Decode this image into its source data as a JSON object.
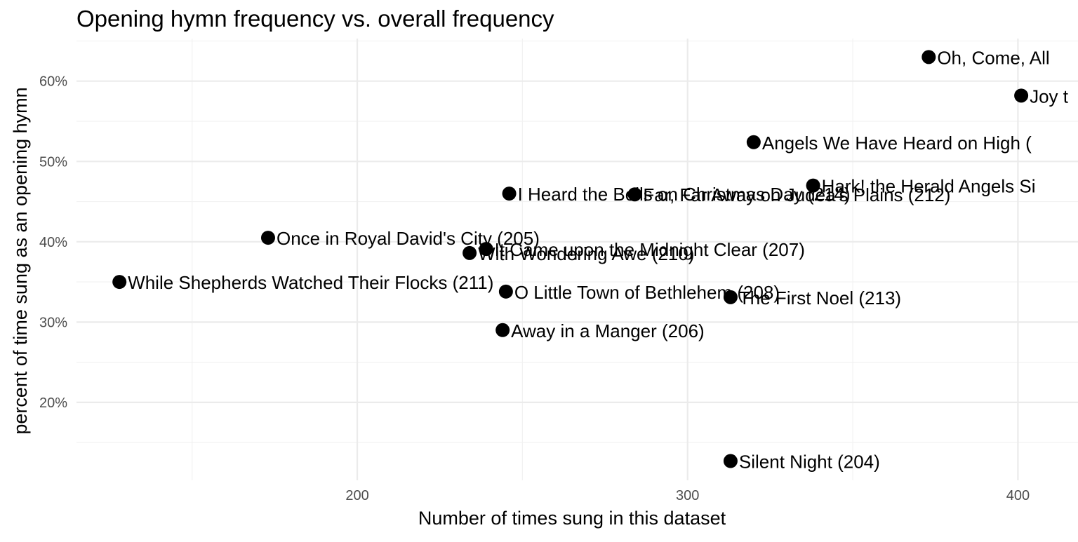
{
  "chart_data": {
    "type": "scatter",
    "title": "Opening hymn frequency vs. overall frequency",
    "xlabel": "Number of times sung in this dataset",
    "ylabel": "percent of time sung as an opening hymn",
    "xlim": [
      115,
      415
    ],
    "ylim": [
      10.3,
      65.3
    ],
    "x_ticks": [
      200,
      300,
      400
    ],
    "x_minor_ticks": [
      150,
      250,
      350
    ],
    "y_ticks": [
      20,
      30,
      40,
      50,
      60
    ],
    "y_tick_labels": [
      "20%",
      "30%",
      "40%",
      "50%",
      "60%"
    ],
    "y_minor_ticks": [
      15,
      25,
      35,
      45,
      55,
      65
    ],
    "grid": true,
    "points": [
      {
        "x": 373,
        "y": 63.0,
        "label": "Oh, Come, All"
      },
      {
        "x": 401,
        "y": 58.2,
        "label": "Joy t"
      },
      {
        "x": 320,
        "y": 52.4,
        "label": "Angels We Have Heard on High ("
      },
      {
        "x": 338,
        "y": 47.0,
        "label": "Hark! the Herald Angels Si"
      },
      {
        "x": 246,
        "y": 46.0,
        "label": "I Heard the Bells on Christmas Day (214)"
      },
      {
        "x": 284,
        "y": 45.9,
        "label": "Far, Far Away on Judea's Plains (212)"
      },
      {
        "x": 173,
        "y": 40.5,
        "label": "Once in Royal David's City (205)"
      },
      {
        "x": 239,
        "y": 39.1,
        "label": "It Came upon the Midnight Clear (207)"
      },
      {
        "x": 234,
        "y": 38.6,
        "label": "With Wondering Awe (210)"
      },
      {
        "x": 128,
        "y": 35.0,
        "label": "While Shepherds Watched Their Flocks (211)"
      },
      {
        "x": 245,
        "y": 33.8,
        "label": "O Little Town of Bethlehem (208)"
      },
      {
        "x": 313,
        "y": 33.1,
        "label": "The First Noel (213)"
      },
      {
        "x": 244,
        "y": 29.0,
        "label": "Away in a Manger (206)"
      },
      {
        "x": 313,
        "y": 12.7,
        "label": "Silent Night (204)"
      }
    ]
  }
}
